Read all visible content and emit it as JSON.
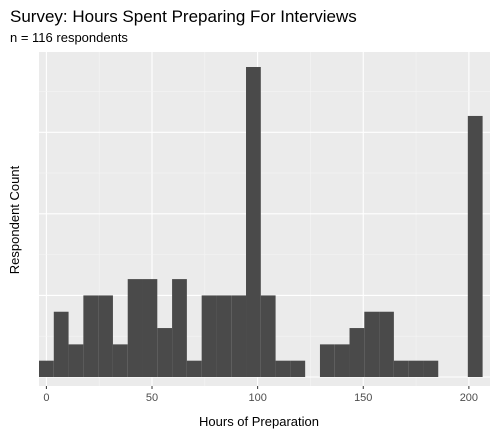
{
  "chart_data": {
    "type": "bar",
    "title": "Survey: Hours Spent Preparing For Interviews",
    "subtitle": "n = 116 respondents",
    "xlabel": "Hours of Preparation",
    "ylabel": "Respondent Count",
    "xlim": [
      -3.5,
      210
    ],
    "ylim": [
      0,
      19
    ],
    "x_ticks": [
      0,
      50,
      100,
      150,
      200
    ],
    "x_tick_labels": [
      "0",
      "50",
      "100",
      "150",
      "200"
    ],
    "y_tick_labels_shown": false,
    "grid": true,
    "legend": "none",
    "bin_width": 7,
    "bins": [
      {
        "x0": -3.5,
        "x1": 3.5,
        "count": 1
      },
      {
        "x0": 3.5,
        "x1": 10.5,
        "count": 4
      },
      {
        "x0": 10.5,
        "x1": 17.5,
        "count": 2
      },
      {
        "x0": 17.5,
        "x1": 24.5,
        "count": 5
      },
      {
        "x0": 24.5,
        "x1": 31.5,
        "count": 5
      },
      {
        "x0": 31.5,
        "x1": 38.5,
        "count": 2
      },
      {
        "x0": 38.5,
        "x1": 45.5,
        "count": 6
      },
      {
        "x0": 45.5,
        "x1": 52.5,
        "count": 6
      },
      {
        "x0": 52.5,
        "x1": 59.5,
        "count": 3
      },
      {
        "x0": 59.5,
        "x1": 66.5,
        "count": 6
      },
      {
        "x0": 66.5,
        "x1": 73.5,
        "count": 1
      },
      {
        "x0": 73.5,
        "x1": 80.5,
        "count": 5
      },
      {
        "x0": 80.5,
        "x1": 87.5,
        "count": 5
      },
      {
        "x0": 87.5,
        "x1": 94.5,
        "count": 5
      },
      {
        "x0": 94.5,
        "x1": 101.5,
        "count": 19
      },
      {
        "x0": 101.5,
        "x1": 108.5,
        "count": 5
      },
      {
        "x0": 108.5,
        "x1": 115.5,
        "count": 1
      },
      {
        "x0": 115.5,
        "x1": 122.5,
        "count": 1
      },
      {
        "x0": 122.5,
        "x1": 129.5,
        "count": 0
      },
      {
        "x0": 129.5,
        "x1": 136.5,
        "count": 2
      },
      {
        "x0": 136.5,
        "x1": 143.5,
        "count": 2
      },
      {
        "x0": 143.5,
        "x1": 150.5,
        "count": 3
      },
      {
        "x0": 150.5,
        "x1": 157.5,
        "count": 4
      },
      {
        "x0": 157.5,
        "x1": 164.5,
        "count": 4
      },
      {
        "x0": 164.5,
        "x1": 171.5,
        "count": 1
      },
      {
        "x0": 171.5,
        "x1": 178.5,
        "count": 1
      },
      {
        "x0": 178.5,
        "x1": 185.5,
        "count": 1
      },
      {
        "x0": 185.5,
        "x1": 192.5,
        "count": 0
      },
      {
        "x0": 192.5,
        "x1": 199.5,
        "count": 0
      },
      {
        "x0": 199.5,
        "x1": 206.5,
        "count": 16
      }
    ],
    "colors": {
      "bar_fill": "#4a4a4a",
      "panel_background": "#ebebeb",
      "grid_major": "#ffffff",
      "grid_minor": "#f5f5f5",
      "tick_text": "#4d4d4d"
    }
  }
}
